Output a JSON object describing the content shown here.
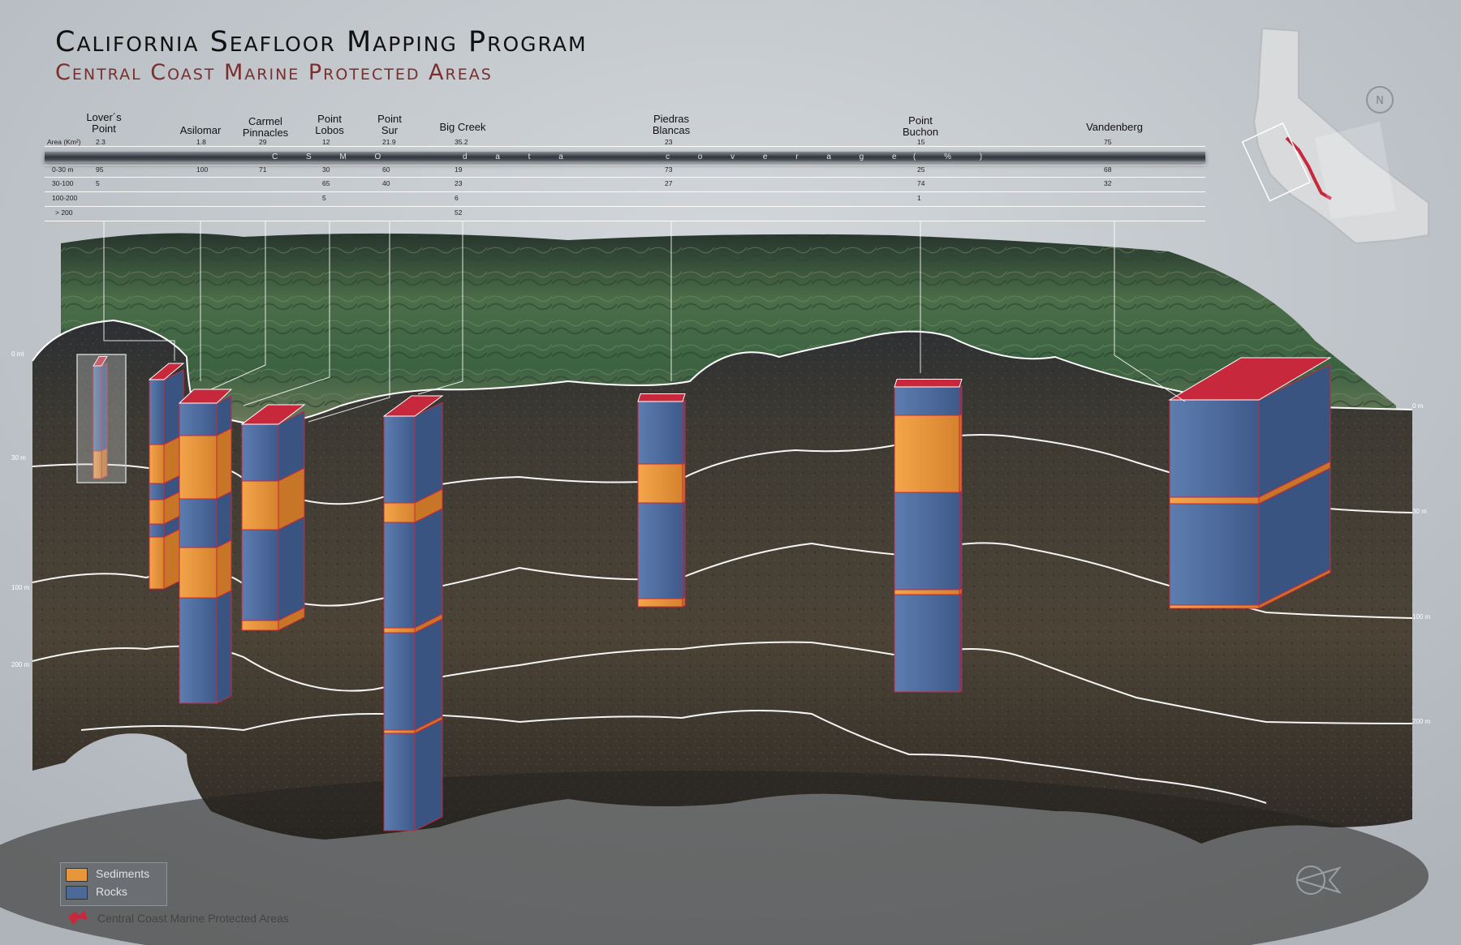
{
  "header": {
    "title": "California Seafloor Mapping Program",
    "subtitle": "Central Coast Marine Protected Areas"
  },
  "table": {
    "row_labels": [
      "Area (Km²)",
      "0-30 m",
      "30-100",
      "100-200",
      "> 200"
    ],
    "band_words": [
      "C S M O",
      "d a t a",
      "c o v e r a g e",
      "( % )"
    ],
    "sites": [
      {
        "name": [
          "Lover´s",
          "Point"
        ],
        "area": "2.3",
        "d0_30": "95",
        "d30_100": "5",
        "d100_200": "",
        "d200": ""
      },
      {
        "name": [
          "Asilomar"
        ],
        "area": "1.8",
        "d0_30": "100",
        "d30_100": "",
        "d100_200": "",
        "d200": ""
      },
      {
        "name": [
          "Carmel",
          "Pinnacles"
        ],
        "area": "29",
        "d0_30": "71",
        "d30_100": "",
        "d100_200": "",
        "d200": ""
      },
      {
        "name": [
          "Point",
          "Lobos"
        ],
        "area": "12",
        "d0_30": "30",
        "d30_100": "65",
        "d100_200": "5",
        "d200": ""
      },
      {
        "name": [
          "Point",
          "Sur"
        ],
        "area": "21.9",
        "d0_30": "60",
        "d30_100": "40",
        "d100_200": "",
        "d200": ""
      },
      {
        "name": [
          "Big Creek"
        ],
        "area": "35.2",
        "d0_30": "19",
        "d30_100": "23",
        "d100_200": "6",
        "d200": "52"
      },
      {
        "name": [
          "Piedras",
          "Blancas"
        ],
        "area": "23",
        "d0_30": "73",
        "d30_100": "27",
        "d100_200": "",
        "d200": ""
      },
      {
        "name": [
          "Point",
          "Buchon"
        ],
        "area": "15",
        "d0_30": "25",
        "d30_100": "74",
        "d100_200": "1",
        "d200": ""
      },
      {
        "name": [
          "Vandenberg"
        ],
        "area": "75",
        "d0_30": "68",
        "d30_100": "32",
        "d100_200": "",
        "d200": ""
      }
    ]
  },
  "depth_labels": {
    "left": [
      "0 mt",
      "30 m",
      "100 m",
      "200 m"
    ],
    "right": [
      "0 m",
      "30 m",
      "100 m",
      "200 m"
    ]
  },
  "legend": {
    "sediments_label": "Sediments",
    "rocks_label": "Rocks",
    "mpa_label": "Central Coast Marine Protected Areas"
  },
  "north_symbol": "N",
  "colors": {
    "sediments": "#e8963a",
    "rocks": "#4b6a9a",
    "mpa": "#c8283c",
    "seafloor": "#4a4236",
    "land": "#3f6a45",
    "depth_line": "#ffffff"
  },
  "icons": [
    "california-locator-map-icon",
    "compass-rose-icon",
    "north-arrow-icon",
    "mpa-marker-icon"
  ]
}
